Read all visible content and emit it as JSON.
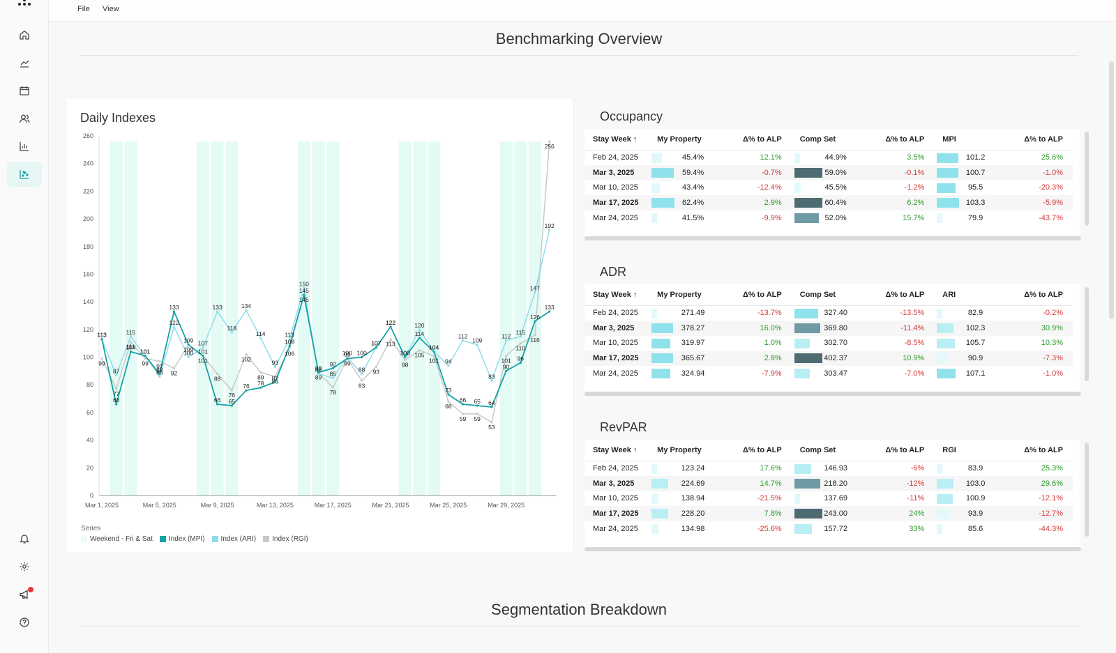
{
  "menu": {
    "file": "File",
    "view": "View"
  },
  "sections": {
    "overview": "Benchmarking Overview",
    "segmentation": "Segmentation Breakdown"
  },
  "sidebar": {
    "top": [
      "home-icon",
      "trend-icon",
      "calendar-icon",
      "users-icon",
      "bar-chart-icon",
      "scatter-chart-icon"
    ],
    "bottom": [
      "bell-icon",
      "gear-icon",
      "megaphone-icon",
      "help-icon"
    ]
  },
  "colors": {
    "mpi": "#17a2a6",
    "ari": "#8fdcea",
    "rgi": "#c8c8c8",
    "weekend": "#e4faf5",
    "accent": "#e6f6f4"
  },
  "daily_indexes": {
    "title": "Daily Indexes",
    "legend_title": "Series",
    "legend": [
      "Weekend - Fri & Sat",
      "Index (MPI)",
      "Index (ARI)",
      "Index (RGI)"
    ]
  },
  "chart_data": {
    "type": "line",
    "title": "Daily Indexes",
    "x_ticks": [
      "Mar 1, 2025",
      "Mar 5, 2025",
      "Mar 9, 2025",
      "Mar 13, 2025",
      "Mar 17, 2025",
      "Mar 21, 2025",
      "Mar 25, 2025",
      "Mar 29, 2025"
    ],
    "y_ticks": [
      0,
      20,
      40,
      60,
      80,
      100,
      120,
      140,
      160,
      180,
      200,
      220,
      240,
      260
    ],
    "ylim": [
      0,
      260
    ],
    "weekend_days": [
      1,
      2,
      7,
      8,
      9,
      14,
      15,
      16,
      21,
      22,
      23,
      28,
      29,
      30
    ],
    "series": [
      {
        "name": "Index (MPI)",
        "values": [
          113,
          66,
          104,
          101,
          88,
          133,
          109,
          101,
          66,
          65,
          76,
          78,
          82,
          108,
          145,
          89,
          92,
          99,
          100,
          107,
          122,
          100,
          114,
          104,
          73,
          66,
          65,
          64,
          90,
          96,
          126,
          133
        ]
      },
      {
        "name": "Index (ARI)",
        "values": [
          113,
          87,
          115,
          101,
          86,
          122,
          100,
          107,
          133,
          118,
          134,
          114,
          93,
          113,
          150,
          88,
          85,
          100,
          88,
          107,
          122,
          100,
          120,
          104,
          94,
          112,
          109,
          83,
          112,
          115,
          147,
          192
        ]
      },
      {
        "name": "Index (RGI)",
        "values": [
          99,
          77,
          111,
          99,
          97,
          92,
          109,
          101,
          88,
          76,
          102,
          89,
          86,
          106,
          145,
          89,
          78,
          99,
          83,
          93,
          113,
          98,
          105,
          101,
          68,
          59,
          59,
          53,
          101,
          110,
          116,
          256
        ]
      }
    ]
  },
  "tables": [
    {
      "title": "Occupancy",
      "headers": [
        "Stay Week ↑",
        "My Property",
        "Δ% to ALP",
        "Comp Set",
        "Δ% to ALP",
        "MPI",
        "Δ% to ALP"
      ],
      "rows": [
        {
          "week": "Feb 24, 2025",
          "my": "45.4%",
          "my_d": "12.1%",
          "comp": "44.9%",
          "comp_d": "3.5%",
          "idx": "101.2",
          "idx_d": "25.6%",
          "my_f": 0.22,
          "comp_f": 0.0,
          "idx_f": 0.7
        },
        {
          "week": "Mar 3, 2025",
          "my": "59.4%",
          "my_d": "-0.7%",
          "comp": "59.0%",
          "comp_d": "-0.1%",
          "idx": "100.7",
          "idx_d": "-1.0%",
          "my_f": 0.75,
          "comp_f": 1.0,
          "idx_f": 0.7
        },
        {
          "week": "Mar 10, 2025",
          "my": "43.4%",
          "my_d": "-12.4%",
          "comp": "45.5%",
          "comp_d": "-1.2%",
          "idx": "95.5",
          "idx_d": "-20.3%",
          "my_f": 0.12,
          "comp_f": 0.05,
          "idx_f": 0.6
        },
        {
          "week": "Mar 17, 2025",
          "my": "62.4%",
          "my_d": "2.9%",
          "comp": "60.4%",
          "comp_d": "6.2%",
          "idx": "103.3",
          "idx_d": "-5.9%",
          "my_f": 0.78,
          "comp_f": 1.0,
          "idx_f": 0.75
        },
        {
          "week": "Mar 24, 2025",
          "my": "41.5%",
          "my_d": "-9.9%",
          "comp": "52.0%",
          "comp_d": "15.7%",
          "idx": "79.9",
          "idx_d": "-43.7%",
          "my_f": 0.0,
          "comp_f": 0.85,
          "idx_f": 0.0
        }
      ]
    },
    {
      "title": "ADR",
      "headers": [
        "Stay Week ↑",
        "My Property",
        "Δ% to ALP",
        "Comp Set",
        "Δ% to ALP",
        "ARI",
        "Δ% to ALP"
      ],
      "rows": [
        {
          "week": "Feb 24, 2025",
          "my": "271.49",
          "my_d": "-13.7%",
          "comp": "327.40",
          "comp_d": "-13.5%",
          "idx": "82.9",
          "idx_d": "-0.2%",
          "my_f": 0.0,
          "comp_f": 0.82,
          "idx_f": 0.0
        },
        {
          "week": "Mar 3, 2025",
          "my": "378.27",
          "my_d": "16.0%",
          "comp": "369.80",
          "comp_d": "-11.4%",
          "idx": "102.3",
          "idx_d": "30.9%",
          "my_f": 0.7,
          "comp_f": 0.9,
          "idx_f": 0.5
        },
        {
          "week": "Mar 10, 2025",
          "my": "319.97",
          "my_d": "1.0%",
          "comp": "302.70",
          "comp_d": "-8.5%",
          "idx": "105.7",
          "idx_d": "10.3%",
          "my_f": 0.6,
          "comp_f": 0.45,
          "idx_f": 0.55
        },
        {
          "week": "Mar 17, 2025",
          "my": "365.67",
          "my_d": "2.8%",
          "comp": "402.37",
          "comp_d": "10.9%",
          "idx": "90.9",
          "idx_d": "-7.3%",
          "my_f": 0.7,
          "comp_f": 1.0,
          "idx_f": 0.2
        },
        {
          "week": "Mar 24, 2025",
          "my": "324.94",
          "my_d": "-7.9%",
          "comp": "303.47",
          "comp_d": "-7.0%",
          "idx": "107.1",
          "idx_d": "-1.0%",
          "my_f": 0.6,
          "comp_f": 0.45,
          "idx_f": 0.6
        }
      ]
    },
    {
      "title": "RevPAR",
      "headers": [
        "Stay Week ↑",
        "My Property",
        "Δ% to ALP",
        "Comp Set",
        "Δ% to ALP",
        "RGI",
        "Δ% to ALP"
      ],
      "rows": [
        {
          "week": "Feb 24, 2025",
          "my": "123.24",
          "my_d": "17.6%",
          "comp": "146.93",
          "comp_d": "-6%",
          "idx": "83.9",
          "idx_d": "25.3%",
          "my_f": 0.0,
          "comp_f": 0.5,
          "idx_f": 0.0
        },
        {
          "week": "Mar 3, 2025",
          "my": "224.69",
          "my_d": "14.7%",
          "comp": "218.20",
          "comp_d": "-12%",
          "idx": "103.0",
          "idx_d": "29.6%",
          "my_f": 0.5,
          "comp_f": 0.9,
          "idx_f": 0.5
        },
        {
          "week": "Mar 10, 2025",
          "my": "138.94",
          "my_d": "-21.5%",
          "comp": "137.69",
          "comp_d": "-11%",
          "idx": "100.9",
          "idx_d": "-12.1%",
          "my_f": 0.05,
          "comp_f": 0.0,
          "idx_f": 0.45
        },
        {
          "week": "Mar 17, 2025",
          "my": "228.20",
          "my_d": "7.8%",
          "comp": "243.00",
          "comp_d": "24%",
          "idx": "93.9",
          "idx_d": "-12.7%",
          "my_f": 0.5,
          "comp_f": 1.0,
          "idx_f": 0.3
        },
        {
          "week": "Mar 24, 2025",
          "my": "134.98",
          "my_d": "-25.6%",
          "comp": "157.72",
          "comp_d": "33%",
          "idx": "85.6",
          "idx_d": "-44.3%",
          "my_f": 0.05,
          "comp_f": 0.55,
          "idx_f": 0.0
        }
      ]
    }
  ]
}
